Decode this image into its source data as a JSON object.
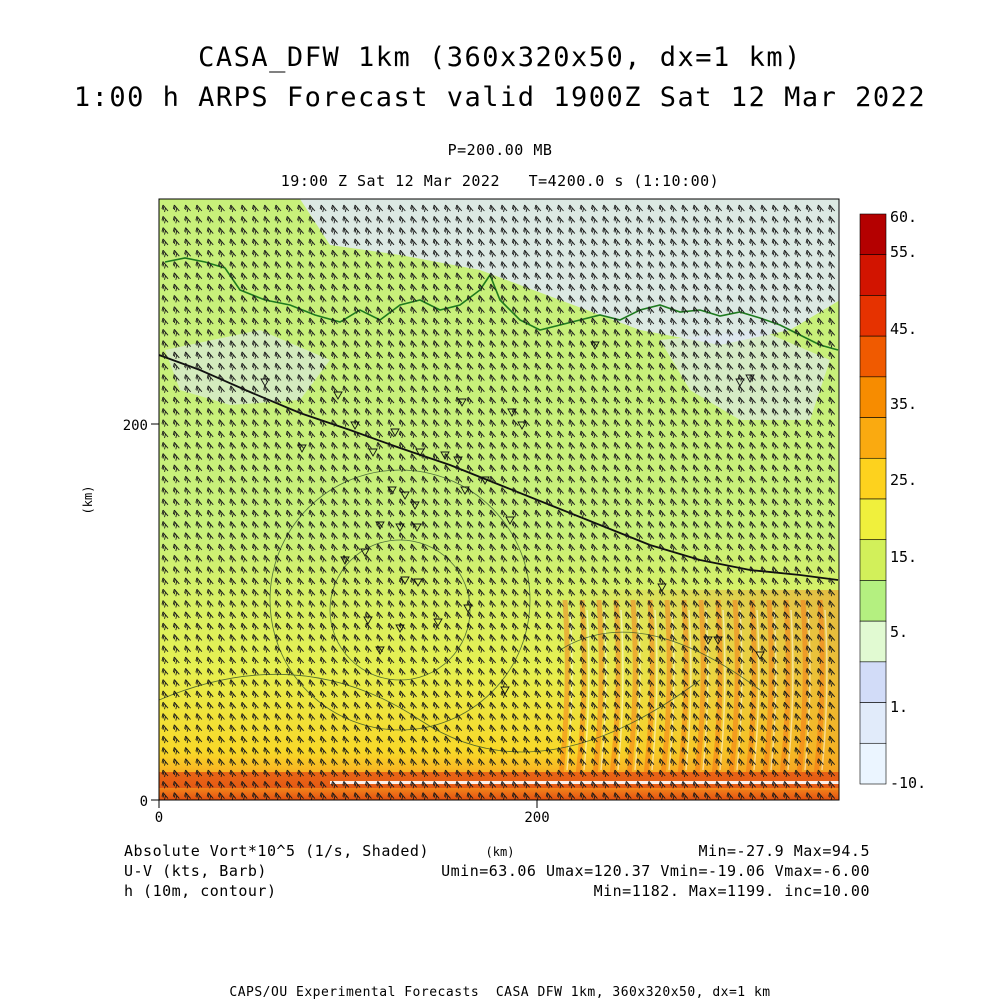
{
  "header": {
    "title_line1": "CASA_DFW 1km (360x320x50, dx=1 km)",
    "title_line2": "1:00 h ARPS Forecast valid 1900Z Sat 12 Mar 2022",
    "level": "P=200.00 MB",
    "valid_time": "19:00 Z Sat 12 Mar 2022   T=4200.0 s (1:10:00)"
  },
  "axes": {
    "x_ticks": [
      "0",
      "200"
    ],
    "y_ticks": [
      "0",
      "200"
    ],
    "y_unit_label": "(km)",
    "x_unit_label": "(km)"
  },
  "colorbar": {
    "labels": [
      "60.",
      "55.",
      "45.",
      "35.",
      "25.",
      "15.",
      "5.",
      "1.",
      "-10."
    ],
    "colors": [
      "#b40000",
      "#d21400",
      "#e63200",
      "#f05a00",
      "#f78c00",
      "#faaa10",
      "#fdd21e",
      "#f0f03c",
      "#d2f05a",
      "#b4f080",
      "#e1fad2",
      "#d2dcf8",
      "#e1ebfa",
      "#ebf5ff"
    ]
  },
  "footer": {
    "field1_label": "Absolute Vort*10^5 (1/s, Shaded)",
    "field1_stats": "Min=-27.9 Max=94.5",
    "field2_label": "U-V (kts, Barb)",
    "field2_stats": "Umin=63.06 Umax=120.37 Vmin=-19.06 Vmax=-6.00",
    "field3_label": "h (10m, contour)",
    "field3_stats": "Min=1182. Max=1199. inc=10.00",
    "credit": "CAPS/OU Experimental Forecasts  CASA DFW 1km, 360x320x50, dx=1 km"
  },
  "chart_data": {
    "type": "heatmap",
    "title": "CASA_DFW 1km (360x320x50, dx=1 km)",
    "subtitle": "1:00 h ARPS Forecast valid 1900Z Sat 12 Mar 2022",
    "xlabel": "(km)",
    "ylabel": "(km)",
    "xlim": [
      0,
      360
    ],
    "ylim": [
      0,
      320
    ],
    "x_tick_values": [
      0,
      200
    ],
    "y_tick_values": [
      0,
      200
    ],
    "shaded_field": {
      "name": "Absolute Vort*10^5 (1/s, Shaded)",
      "min": -27.9,
      "max": 94.5,
      "contour_levels": [
        -10,
        1,
        5,
        15,
        25,
        35,
        45,
        55,
        60
      ]
    },
    "barb_field": {
      "name": "U-V (kts, Barb)",
      "umin": 63.06,
      "umax": 120.37,
      "vmin": -19.06,
      "vmax": -6.0
    },
    "contour_field": {
      "name": "h (10m, contour)",
      "min": 1182,
      "max": 1199,
      "inc": 10.0
    }
  }
}
